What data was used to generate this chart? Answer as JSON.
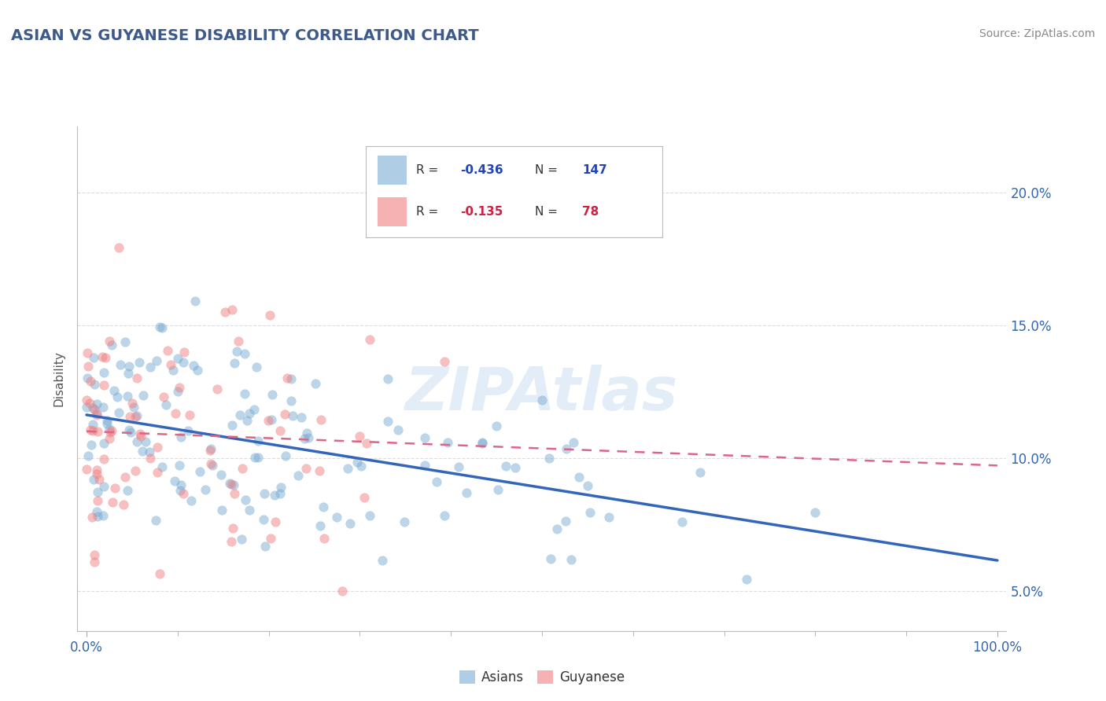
{
  "title": "ASIAN VS GUYANESE DISABILITY CORRELATION CHART",
  "source_text": "Source: ZipAtlas.com",
  "ylabel": "Disability",
  "watermark": "ZIPAtlas",
  "xlim": [
    0,
    1
  ],
  "ylim": [
    0.035,
    0.225
  ],
  "yticks": [
    0.05,
    0.1,
    0.15,
    0.2
  ],
  "ytick_labels": [
    "5.0%",
    "10.0%",
    "15.0%",
    "20.0%"
  ],
  "xticks": [
    0.0,
    1.0
  ],
  "xtick_labels": [
    "0.0%",
    "100.0%"
  ],
  "asian_color": "#7aadd4",
  "guyanese_color": "#f08080",
  "trend_asian_color": "#3366bb",
  "trend_guyanese_color": "#dd6688",
  "background_color": "#ffffff",
  "grid_color": "#dddddd",
  "title_color": "#3d5a8a",
  "source_color": "#888888",
  "r_asian_text": "-0.436",
  "n_asian_text": "147",
  "r_guyanese_text": "-0.135",
  "n_guyanese_text": "78",
  "r_asian": -0.436,
  "n_asian": 147,
  "r_guyanese": -0.135,
  "n_guyanese": 78
}
